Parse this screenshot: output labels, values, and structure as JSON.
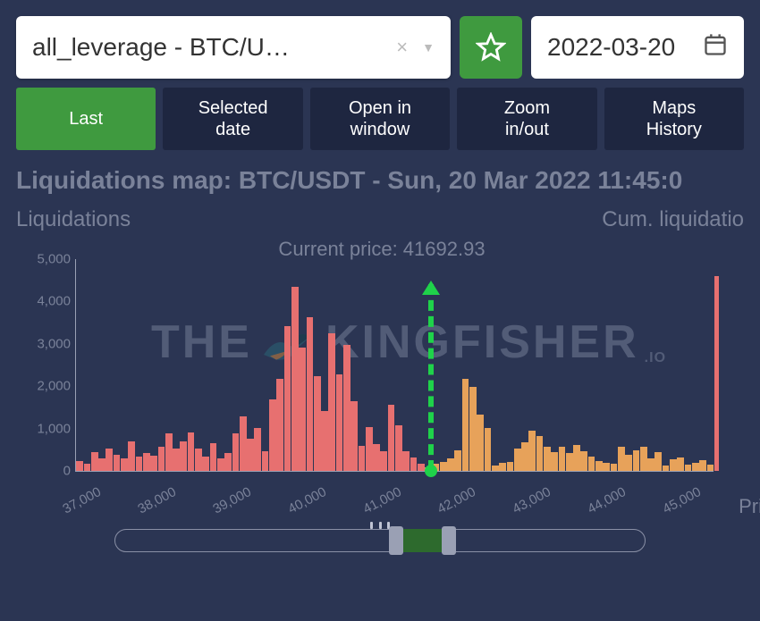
{
  "colors": {
    "bg": "#2b3553",
    "panel_dark": "#1e2640",
    "accent_green": "#3f9a3f",
    "price_green": "#1fd24a",
    "text_muted": "#7a8299",
    "axis": "#9aa0b4",
    "bar_left": "#e77070",
    "bar_right": "#e7a25a",
    "white": "#ffffff"
  },
  "dropdown": {
    "text": "all_leverage - BTC/U…"
  },
  "date_box": "2022-03-20",
  "tabs": [
    {
      "label": "Last",
      "active": true
    },
    {
      "label": "Selected\ndate",
      "active": false
    },
    {
      "label": "Open in\nwindow",
      "active": false
    },
    {
      "label": "Zoom\nin/out",
      "active": false
    },
    {
      "label": "Maps\nHistory",
      "active": false
    }
  ],
  "chart": {
    "title": "Liquidations map: BTC/USDT - Sun, 20 Mar 2022 11:45:0",
    "y_left_label": "Liquidations",
    "y_right_label": "Cum. liquidatio",
    "x_right_label": "Pric",
    "current_price_label": "Current price: 41692.93",
    "current_price": 41692.93,
    "xmin": 37000,
    "xmax": 45500,
    "ymin": 0,
    "ymax": 5000,
    "yticks": [
      0,
      1000,
      2000,
      3000,
      4000,
      5000
    ],
    "ytick_labels": [
      "0",
      "1,000",
      "2,000",
      "3,000",
      "4,000",
      "5,000"
    ],
    "xticks": [
      37000,
      38000,
      39000,
      40000,
      41000,
      42000,
      43000,
      44000,
      45000
    ],
    "xtick_labels": [
      "37,000",
      "38,000",
      "39,000",
      "40,000",
      "41,000",
      "42,000",
      "43,000",
      "44,000",
      "45,000"
    ],
    "cum_bar_height_pct": 92,
    "bars": [
      240,
      160,
      440,
      300,
      520,
      380,
      300,
      700,
      340,
      420,
      360,
      560,
      880,
      520,
      700,
      900,
      520,
      340,
      660,
      300,
      420,
      880,
      1280,
      760,
      1020,
      460,
      1680,
      2180,
      3420,
      4350,
      2920,
      3620,
      2240,
      1420,
      3240,
      2280,
      2980,
      1640,
      600,
      1040,
      640,
      460,
      1560,
      1080,
      460,
      320,
      160,
      80,
      160,
      220,
      300,
      480,
      2180,
      1980,
      1320,
      1020,
      120,
      200,
      220,
      520,
      680,
      940,
      820,
      560,
      440,
      560,
      420,
      620,
      460,
      340,
      240,
      180,
      160,
      560,
      380,
      480,
      560,
      300,
      440,
      120,
      280,
      320,
      140,
      200,
      260,
      140
    ],
    "watermark": {
      "left": "THE",
      "right": "KINGFISHER",
      "suffix": ".IO"
    }
  },
  "slider": {
    "fill_left_pct": 53,
    "fill_width_pct": 10
  }
}
